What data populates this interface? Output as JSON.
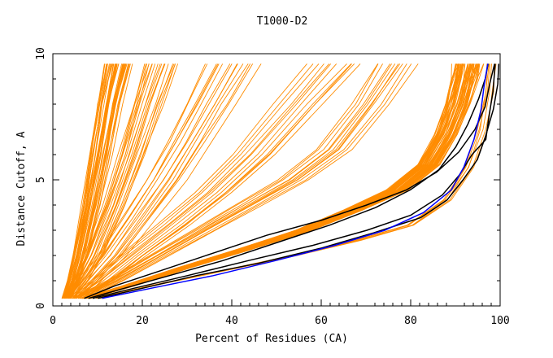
{
  "chart_data": {
    "type": "line",
    "title": "T1000-D2",
    "xlabel": "Percent of Residues (CA)",
    "ylabel": "Distance Cutoff, A",
    "xlim": [
      0,
      100
    ],
    "ylim": [
      0,
      10
    ],
    "x_ticks": [
      0,
      20,
      40,
      60,
      80,
      100
    ],
    "y_ticks": [
      0,
      5,
      10
    ],
    "x_tick_labels": [
      "0",
      "20",
      "40",
      "60",
      "80",
      "100"
    ],
    "y_tick_labels": [
      "0",
      "5",
      "10"
    ],
    "grid": false,
    "legend": "none",
    "series_colors": {
      "orange": "#ff8c00",
      "black": "#000000",
      "blue": "#0000ff"
    },
    "series": [
      {
        "color": "orange",
        "count": 40,
        "points": [
          [
            3.0,
            0.3
          ],
          [
            4.5,
            1.0
          ],
          [
            6.0,
            2.0
          ],
          [
            8.5,
            4.0
          ],
          [
            10.5,
            6.0
          ],
          [
            12.5,
            8.0
          ],
          [
            14.5,
            9.6
          ]
        ],
        "x_spread": 5.5
      },
      {
        "color": "orange",
        "count": 20,
        "points": [
          [
            3.5,
            0.3
          ],
          [
            6.0,
            1.0
          ],
          [
            9.0,
            2.0
          ],
          [
            13.5,
            4.0
          ],
          [
            17.5,
            6.0
          ],
          [
            21.0,
            8.0
          ],
          [
            24.0,
            9.6
          ]
        ],
        "x_spread": 7.0
      },
      {
        "color": "orange",
        "count": 15,
        "points": [
          [
            4.5,
            0.3
          ],
          [
            8.0,
            1.0
          ],
          [
            13.0,
            2.0
          ],
          [
            19.0,
            3.5
          ],
          [
            25.0,
            5.0
          ],
          [
            30.0,
            6.5
          ],
          [
            35.0,
            8.0
          ],
          [
            40.0,
            9.6
          ]
        ],
        "x_spread": 12.0
      },
      {
        "color": "orange",
        "count": 12,
        "points": [
          [
            5.5,
            0.3
          ],
          [
            11.0,
            1.0
          ],
          [
            18.0,
            2.0
          ],
          [
            27.0,
            3.2
          ],
          [
            36.0,
            4.5
          ],
          [
            45.0,
            6.0
          ],
          [
            55.0,
            8.0
          ],
          [
            63.0,
            9.6
          ]
        ],
        "x_spread": 12.0
      },
      {
        "color": "orange",
        "count": 12,
        "points": [
          [
            6.0,
            0.3
          ],
          [
            14.0,
            1.0
          ],
          [
            24.0,
            2.0
          ],
          [
            34.0,
            3.0
          ],
          [
            44.0,
            4.0
          ],
          [
            54.0,
            5.0
          ],
          [
            63.0,
            6.2
          ],
          [
            71.0,
            8.0
          ],
          [
            77.0,
            9.6
          ]
        ],
        "x_spread": 8.0
      },
      {
        "color": "orange",
        "count": 60,
        "points": [
          [
            7.5,
            0.3
          ],
          [
            17.0,
            0.8
          ],
          [
            29.0,
            1.5
          ],
          [
            42.0,
            2.2
          ],
          [
            56.0,
            3.0
          ],
          [
            67.0,
            3.8
          ],
          [
            77.0,
            4.6
          ],
          [
            84.0,
            5.6
          ],
          [
            88.0,
            6.8
          ],
          [
            90.5,
            8.0
          ],
          [
            92.0,
            9.0
          ],
          [
            92.8,
            9.6
          ]
        ],
        "x_spread": 6.0
      },
      {
        "color": "orange",
        "count": 6,
        "points": [
          [
            10.0,
            0.3
          ],
          [
            22.0,
            0.8
          ],
          [
            38.0,
            1.4
          ],
          [
            54.0,
            2.0
          ],
          [
            68.0,
            2.6
          ],
          [
            80.0,
            3.2
          ],
          [
            88.0,
            4.2
          ],
          [
            93.0,
            5.5
          ],
          [
            96.0,
            7.0
          ],
          [
            97.5,
            8.5
          ],
          [
            98.2,
            9.6
          ]
        ],
        "x_spread": 2.0
      },
      {
        "color": "black",
        "count": 1,
        "points": [
          [
            8.0,
            0.3
          ],
          [
            16.0,
            0.7
          ],
          [
            26.0,
            1.2
          ],
          [
            38.0,
            1.8
          ],
          [
            50.0,
            2.5
          ],
          [
            62.0,
            3.2
          ],
          [
            72.0,
            3.9
          ],
          [
            80.0,
            4.6
          ],
          [
            86.0,
            5.4
          ],
          [
            90.0,
            6.3
          ],
          [
            93.0,
            7.2
          ],
          [
            95.0,
            8.2
          ],
          [
            96.5,
            9.0
          ],
          [
            97.5,
            9.6
          ]
        ],
        "x_spread": 0
      },
      {
        "color": "black",
        "count": 1,
        "points": [
          [
            7.0,
            0.3
          ],
          [
            14.0,
            0.8
          ],
          [
            24.0,
            1.4
          ],
          [
            36.0,
            2.1
          ],
          [
            48.0,
            2.8
          ],
          [
            60.0,
            3.4
          ],
          [
            70.0,
            4.0
          ],
          [
            79.0,
            4.6
          ],
          [
            86.0,
            5.3
          ],
          [
            91.0,
            6.1
          ],
          [
            94.5,
            7.0
          ],
          [
            96.5,
            7.9
          ],
          [
            98.0,
            8.8
          ],
          [
            98.8,
            9.6
          ]
        ],
        "x_spread": 0
      },
      {
        "color": "black",
        "count": 1,
        "points": [
          [
            9.0,
            0.3
          ],
          [
            18.0,
            0.7
          ],
          [
            30.0,
            1.2
          ],
          [
            44.0,
            1.8
          ],
          [
            58.0,
            2.4
          ],
          [
            70.0,
            3.0
          ],
          [
            80.0,
            3.6
          ],
          [
            87.0,
            4.4
          ],
          [
            91.0,
            5.2
          ],
          [
            94.0,
            6.0
          ],
          [
            96.5,
            6.6
          ],
          [
            97.5,
            7.5
          ],
          [
            98.5,
            8.5
          ],
          [
            99.2,
            9.6
          ]
        ],
        "x_spread": 0
      },
      {
        "color": "black",
        "count": 1,
        "points": [
          [
            10.0,
            0.3
          ],
          [
            20.0,
            0.7
          ],
          [
            32.0,
            1.2
          ],
          [
            46.0,
            1.7
          ],
          [
            60.0,
            2.3
          ],
          [
            72.0,
            2.9
          ],
          [
            82.0,
            3.5
          ],
          [
            88.0,
            4.2
          ],
          [
            92.0,
            5.0
          ],
          [
            95.0,
            5.8
          ],
          [
            97.0,
            6.7
          ],
          [
            98.5,
            7.8
          ],
          [
            99.3,
            8.8
          ],
          [
            99.6,
            9.6
          ]
        ],
        "x_spread": 0
      },
      {
        "color": "blue",
        "count": 1,
        "points": [
          [
            11.0,
            0.3
          ],
          [
            22.0,
            0.7
          ],
          [
            36.0,
            1.2
          ],
          [
            50.0,
            1.8
          ],
          [
            63.0,
            2.4
          ],
          [
            74.0,
            3.0
          ],
          [
            83.0,
            3.7
          ],
          [
            89.0,
            4.6
          ],
          [
            92.0,
            5.5
          ],
          [
            94.0,
            6.6
          ],
          [
            95.5,
            7.8
          ],
          [
            96.5,
            8.8
          ],
          [
            97.2,
            9.6
          ]
        ],
        "x_spread": 0
      }
    ]
  }
}
